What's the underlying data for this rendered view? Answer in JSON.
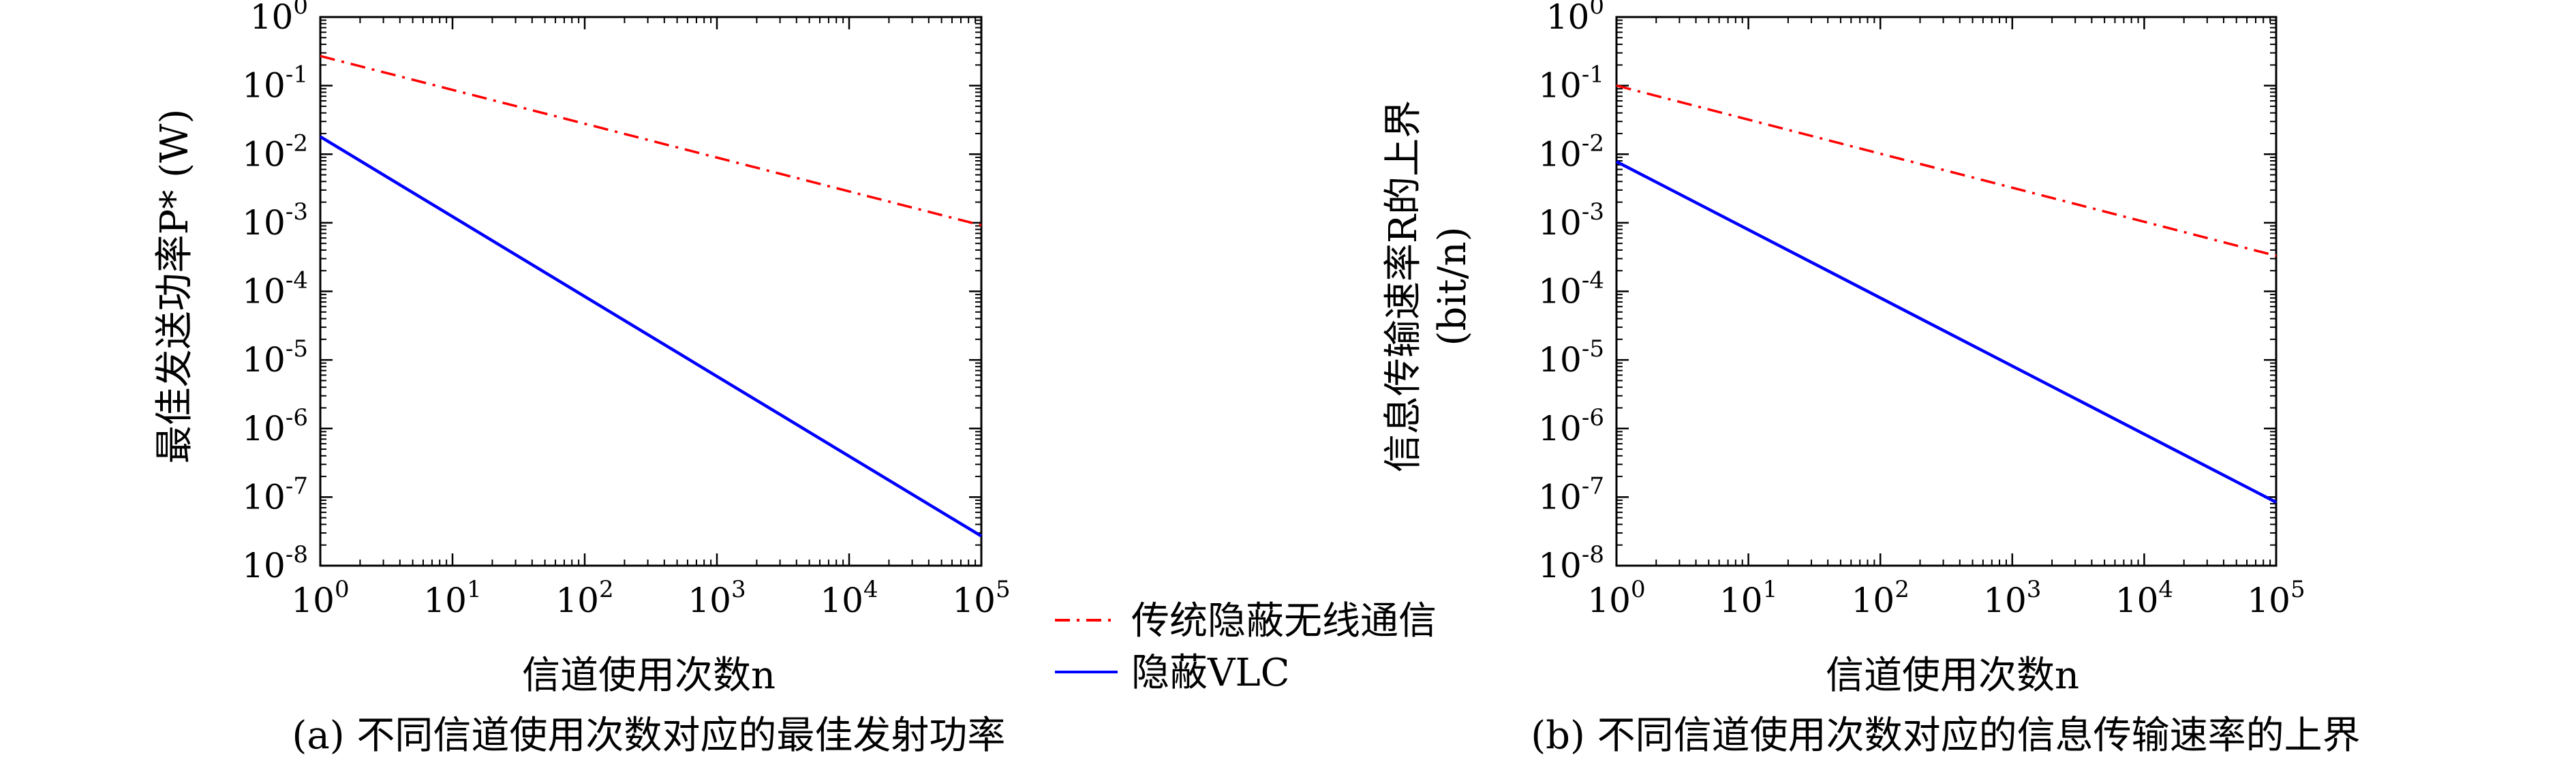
{
  "chart_data": [
    {
      "type": "line",
      "caption": "(a) 不同信道使用次数对应的最佳发射功率",
      "xlabel": "信道使用次数n",
      "ylabel": "最佳发送功率P* (W)",
      "xscale": "log",
      "yscale": "log",
      "xlim": [
        1,
        100000
      ],
      "ylim": [
        1e-08,
        1
      ],
      "x_tick_labels": [
        [
          "10",
          "0"
        ],
        [
          "10",
          "1"
        ],
        [
          "10",
          "2"
        ],
        [
          "10",
          "3"
        ],
        [
          "10",
          "4"
        ],
        [
          "10",
          "5"
        ]
      ],
      "y_tick_labels": [
        [
          "10",
          "0"
        ],
        [
          "10",
          "-1"
        ],
        [
          "10",
          "-2"
        ],
        [
          "10",
          "-3"
        ],
        [
          "10",
          "-4"
        ],
        [
          "10",
          "-5"
        ],
        [
          "10",
          "-6"
        ],
        [
          "10",
          "-7"
        ],
        [
          "10",
          "-8"
        ]
      ],
      "series": [
        {
          "name": "传统隐蔽无线通信",
          "color": "#ff0000",
          "style": "dashdot",
          "x": [
            1,
            100000
          ],
          "y": [
            0.27,
            0.00092
          ]
        },
        {
          "name": "隐蔽VLC",
          "color": "#0000ff",
          "style": "solid",
          "x": [
            1,
            100000
          ],
          "y": [
            0.018,
            2.7e-08
          ]
        }
      ]
    },
    {
      "type": "line",
      "caption": "(b) 不同信道使用次数对应的信息传输速率的上界",
      "xlabel": "信道使用次数n",
      "ylabel": "信息传输速率R的上界",
      "ylabel_unit": "(bit/n)",
      "xscale": "log",
      "yscale": "log",
      "xlim": [
        1,
        100000
      ],
      "ylim": [
        1e-08,
        1
      ],
      "x_tick_labels": [
        [
          "10",
          "0"
        ],
        [
          "10",
          "1"
        ],
        [
          "10",
          "2"
        ],
        [
          "10",
          "3"
        ],
        [
          "10",
          "4"
        ],
        [
          "10",
          "5"
        ]
      ],
      "y_tick_labels": [
        [
          "10",
          "0"
        ],
        [
          "10",
          "-1"
        ],
        [
          "10",
          "-2"
        ],
        [
          "10",
          "-3"
        ],
        [
          "10",
          "-4"
        ],
        [
          "10",
          "-5"
        ],
        [
          "10",
          "-6"
        ],
        [
          "10",
          "-7"
        ],
        [
          "10",
          "-8"
        ]
      ],
      "series": [
        {
          "name": "传统隐蔽无线通信",
          "color": "#ff0000",
          "style": "dashdot",
          "x": [
            1,
            100000
          ],
          "y": [
            0.1,
            0.00033
          ]
        },
        {
          "name": "隐蔽VLC",
          "color": "#0000ff",
          "style": "solid",
          "x": [
            1,
            100000
          ],
          "y": [
            0.0078,
            8.4e-08
          ]
        }
      ]
    }
  ],
  "legend": {
    "placement": "center-between-panels",
    "entries": [
      {
        "label": "传统隐蔽无线通信",
        "color": "#ff0000",
        "style": "dashdot"
      },
      {
        "label": "隐蔽VLC",
        "color": "#0000ff",
        "style": "solid"
      }
    ]
  }
}
